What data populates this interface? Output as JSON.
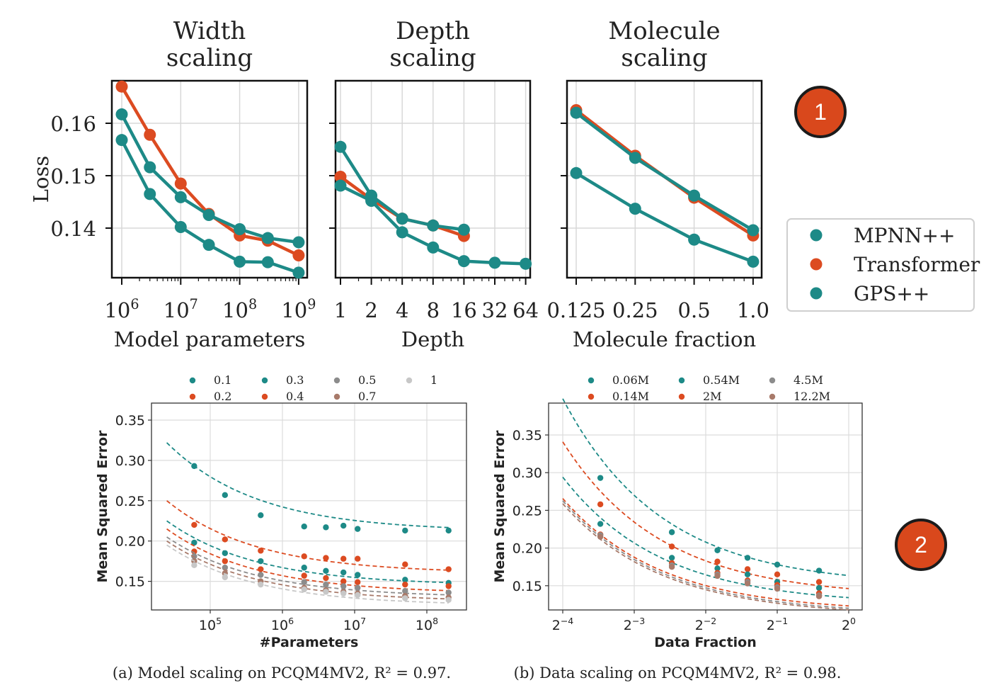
{
  "badges": [
    "1",
    "2"
  ],
  "colors": {
    "teal": "#1d8a87",
    "orange": "#dc4b21",
    "gray": "#8c8c8c",
    "lightgray": "#c7c7c7",
    "brown": "#a87a6a"
  },
  "legend_top": [
    "MPNN++",
    "Transformer",
    "GPS++"
  ],
  "legend_a": [
    "0.1",
    "0.2",
    "0.3",
    "0.4",
    "0.5",
    "0.7",
    "1"
  ],
  "legend_b": [
    "0.06M",
    "0.14M",
    "0.54M",
    "2M",
    "4.5M",
    "12.2M"
  ],
  "captions": {
    "a": "(a) Model scaling on PCQM4MV2, R² = 0.97.",
    "b": "(b) Data scaling on PCQM4MV2, R² = 0.98."
  },
  "chart_data": [
    {
      "type": "line",
      "title": "Width scaling",
      "xlabel": "Model parameters",
      "ylabel": "Loss",
      "xscale": "log",
      "xlim": [
        1000000,
        1000000000
      ],
      "ylim": [
        0.131,
        0.168
      ],
      "xticks": [
        "10^6",
        "10^7",
        "10^8",
        "10^9"
      ],
      "yticks": [
        "0.16",
        "0.15",
        "0.14"
      ],
      "grid": true,
      "series": [
        {
          "name": "MPNN++",
          "x": [
            1000000,
            3000000,
            10000000,
            30000000,
            100000000,
            300000000,
            1000000000
          ],
          "y": [
            0.1617,
            0.1516,
            0.1459,
            0.1425,
            0.1398,
            0.1381,
            0.1373
          ]
        },
        {
          "name": "Transformer",
          "x": [
            1000000,
            3000000,
            10000000,
            30000000,
            100000000,
            300000000,
            1000000000
          ],
          "y": [
            0.167,
            0.1578,
            0.1485,
            0.1427,
            0.1386,
            0.1376,
            0.1348
          ]
        },
        {
          "name": "GPS++",
          "x": [
            1000000,
            3000000,
            10000000,
            30000000,
            100000000,
            300000000,
            1000000000
          ],
          "y": [
            0.1568,
            0.1465,
            0.1402,
            0.1368,
            0.1336,
            0.1335,
            0.1315
          ]
        }
      ]
    },
    {
      "type": "line",
      "title": "Depth scaling",
      "xlabel": "Depth",
      "xscale": "log2",
      "xlim": [
        1,
        64
      ],
      "ylim": [
        0.131,
        0.168
      ],
      "xticks": [
        "1",
        "2",
        "4",
        "8",
        "16",
        "32",
        "64"
      ],
      "grid": true,
      "series": [
        {
          "name": "MPNN++",
          "x": [
            1,
            2,
            4,
            8,
            16
          ],
          "y": [
            0.1555,
            0.1462,
            0.1418,
            0.1405,
            0.1397
          ]
        },
        {
          "name": "Transformer",
          "x": [
            1,
            2,
            4,
            8,
            16
          ],
          "y": [
            0.1498,
            0.1455,
            0.1418,
            0.1405,
            0.1385
          ]
        },
        {
          "name": "GPS++",
          "x": [
            1,
            2,
            4,
            8,
            16,
            32,
            64
          ],
          "y": [
            0.1481,
            0.1452,
            0.1392,
            0.1363,
            0.1337,
            0.1334,
            0.1332
          ]
        }
      ]
    },
    {
      "type": "line",
      "title": "Molecule scaling",
      "xlabel": "Molecule fraction",
      "xscale": "log2",
      "xlim": [
        0.125,
        1.0
      ],
      "ylim": [
        0.131,
        0.168
      ],
      "xticks": [
        "0.125",
        "0.25",
        "0.5",
        "1.0"
      ],
      "grid": true,
      "series": [
        {
          "name": "MPNN++",
          "x": [
            0.125,
            0.25,
            0.5,
            1.0
          ],
          "y": [
            0.162,
            0.1534,
            0.1462,
            0.1396
          ]
        },
        {
          "name": "Transformer",
          "x": [
            0.125,
            0.25,
            0.5,
            1.0
          ],
          "y": [
            0.1625,
            0.1538,
            0.1458,
            0.1386
          ]
        },
        {
          "name": "GPS++",
          "x": [
            0.125,
            0.25,
            0.5,
            1.0
          ],
          "y": [
            0.1505,
            0.1437,
            0.1378,
            0.1336
          ]
        }
      ]
    },
    {
      "type": "scatter",
      "xlabel": "#Parameters",
      "ylabel": "Mean Squared Error",
      "xscale": "log",
      "xlim": [
        18000,
        300000000
      ],
      "ylim": [
        0.12,
        0.37
      ],
      "xticks": [
        "10^5",
        "10^6",
        "10^7",
        "10^8"
      ],
      "yticks": [
        "0.35",
        "0.30",
        "0.25",
        "0.20",
        "0.15"
      ],
      "grid": true,
      "legend": "top",
      "x": [
        60000,
        160000,
        500000,
        2000000,
        4000000,
        7000000,
        11000000,
        50000000,
        200000000
      ],
      "series": [
        {
          "name": "0.1",
          "y": [
            0.293,
            0.257,
            0.232,
            0.218,
            0.217,
            0.219,
            0.215,
            0.213,
            0.213
          ],
          "fit_inf": 0.212,
          "fit_a": 0.11
        },
        {
          "name": "0.2",
          "y": [
            0.22,
            0.202,
            0.188,
            0.181,
            0.179,
            0.178,
            0.178,
            0.171,
            0.165
          ],
          "fit_inf": 0.16,
          "fit_a": 0.09
        },
        {
          "name": "0.3",
          "y": [
            0.198,
            0.185,
            0.175,
            0.167,
            0.163,
            0.161,
            0.158,
            0.152,
            0.148
          ],
          "fit_inf": 0.145,
          "fit_a": 0.08
        },
        {
          "name": "0.4",
          "y": [
            0.187,
            0.175,
            0.165,
            0.157,
            0.154,
            0.15,
            0.149,
            0.146,
            0.144
          ],
          "fit_inf": 0.135,
          "fit_a": 0.08
        },
        {
          "name": "0.5",
          "y": [
            0.181,
            0.167,
            0.158,
            0.149,
            0.146,
            0.144,
            0.142,
            0.138,
            0.136
          ],
          "fit_inf": 0.13,
          "fit_a": 0.075
        },
        {
          "name": "0.7",
          "y": [
            0.175,
            0.16,
            0.15,
            0.142,
            0.139,
            0.137,
            0.135,
            0.132,
            0.13
          ],
          "fit_inf": 0.125,
          "fit_a": 0.075
        },
        {
          "name": "1",
          "y": [
            0.17,
            0.155,
            0.146,
            0.14,
            0.137,
            0.135,
            0.133,
            0.129,
            0.127
          ],
          "fit_inf": 0.12,
          "fit_a": 0.075
        }
      ]
    },
    {
      "type": "scatter",
      "xlabel": "Data Fraction",
      "ylabel": "Mean Squared Error",
      "xscale": "log2",
      "xlim": [
        0.055,
        1.0
      ],
      "ylim": [
        0.127,
        0.382
      ],
      "xticks": [
        "2^-4",
        "2^-3",
        "2^-2",
        "2^-1",
        "2^0"
      ],
      "yticks": [
        "0.35",
        "0.30",
        "0.25",
        "0.20",
        "0.15"
      ],
      "grid": true,
      "legend": "top",
      "x": [
        0.09,
        0.18,
        0.28,
        0.375,
        0.5,
        0.75
      ],
      "series": [
        {
          "name": "0.06M",
          "y": [
            0.293,
            0.221,
            0.197,
            0.187,
            0.178,
            0.17
          ],
          "fit_inf": 0.15,
          "fit_a": 0.0135
        },
        {
          "name": "0.14M",
          "y": [
            0.258,
            0.202,
            0.182,
            0.172,
            0.165,
            0.155
          ],
          "fit_inf": 0.135,
          "fit_a": 0.0112
        },
        {
          "name": "0.54M",
          "y": [
            0.232,
            0.187,
            0.173,
            0.165,
            0.155,
            0.147
          ],
          "fit_inf": 0.125,
          "fit_a": 0.0092
        },
        {
          "name": "2M",
          "y": [
            0.218,
            0.18,
            0.167,
            0.157,
            0.151,
            0.14
          ],
          "fit_inf": 0.115,
          "fit_a": 0.0082
        },
        {
          "name": "4.5M",
          "y": [
            0.217,
            0.177,
            0.165,
            0.155,
            0.148,
            0.137
          ],
          "fit_inf": 0.112,
          "fit_a": 0.0082
        },
        {
          "name": "12.2M",
          "y": [
            0.215,
            0.175,
            0.163,
            0.153,
            0.146,
            0.136
          ],
          "fit_inf": 0.11,
          "fit_a": 0.0081
        }
      ]
    }
  ]
}
